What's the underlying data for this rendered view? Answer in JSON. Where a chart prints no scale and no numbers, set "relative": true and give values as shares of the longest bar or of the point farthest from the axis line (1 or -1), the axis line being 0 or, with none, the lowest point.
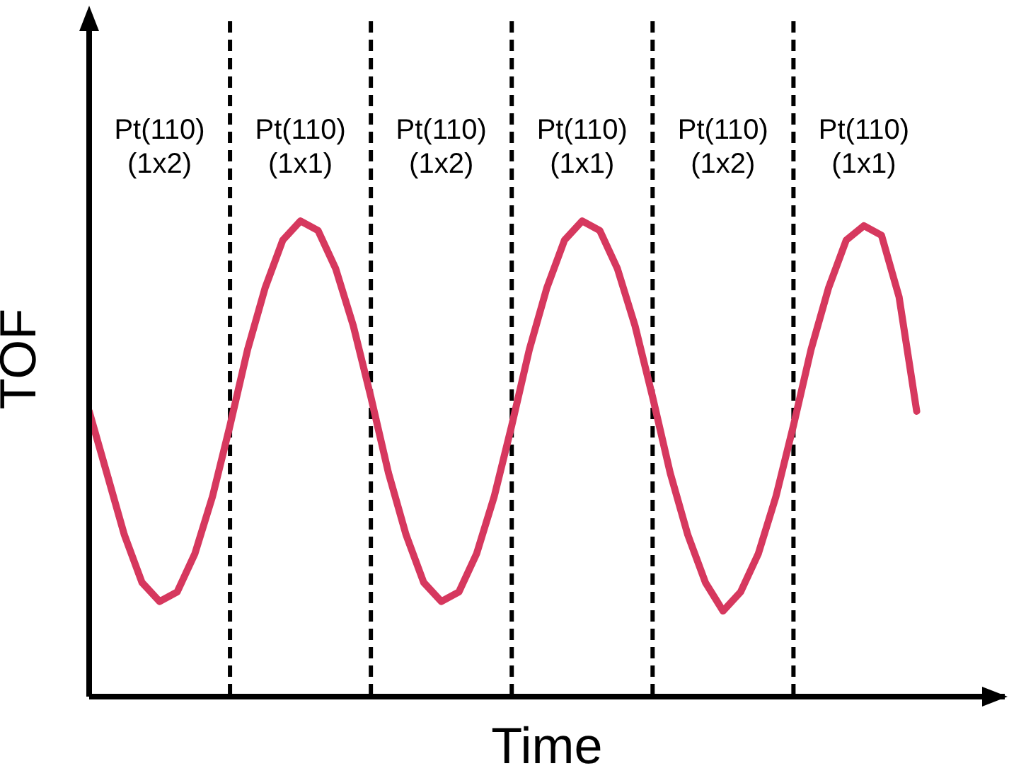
{
  "chart_data": {
    "type": "line",
    "relative": true,
    "xlabel": "Time",
    "ylabel": "TOF",
    "grid": "x",
    "legend": false,
    "marker": "none",
    "line_style": "solid",
    "categories": [
      null,
      null,
      null,
      null,
      null,
      null,
      null,
      null,
      null,
      null,
      null,
      null,
      null,
      null,
      null,
      null,
      null,
      null,
      null,
      null,
      null,
      null,
      null,
      null,
      null,
      null,
      null,
      null,
      null,
      null,
      null,
      null,
      null,
      null,
      null,
      null,
      null,
      null,
      null,
      null,
      null,
      null,
      null,
      null,
      null,
      null,
      null,
      null,
      null,
      null,
      null,
      null,
      null
    ],
    "series": [
      {
        "color": "#d6385e",
        "values": [
          0.6,
          0.47,
          0.34,
          0.24,
          0.2,
          0.22,
          0.3,
          0.42,
          0.57,
          0.73,
          0.86,
          0.96,
          1,
          0.98,
          0.9,
          0.78,
          0.63,
          0.47,
          0.34,
          0.24,
          0.2,
          0.22,
          0.3,
          0.42,
          0.57,
          0.73,
          0.86,
          0.96,
          1,
          0.98,
          0.9,
          0.78,
          0.63,
          0.47,
          0.34,
          0.24,
          0.18,
          0.22,
          0.3,
          0.42,
          0.57,
          0.73,
          0.86,
          0.96,
          0.99,
          0.97,
          0.84,
          0.6,
          null,
          null,
          null,
          null,
          null
        ]
      }
    ],
    "annotations": [
      "Pt(110) (1x2)",
      "Pt(110) (1x1)",
      "Pt(110) (1x2)",
      "Pt(110) (1x1)",
      "Pt(110) (1x2)",
      "Pt(110) (1x1)"
    ]
  }
}
